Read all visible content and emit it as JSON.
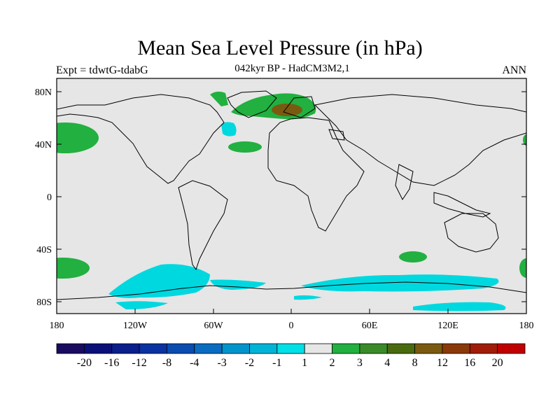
{
  "header": {
    "title": "Mean Sea Level Pressure (in hPa)",
    "experiment": "Expt = tdwtG-tdabG",
    "subtitle": "042kyr BP - HadCM3M2,1",
    "season": "ANN"
  },
  "map": {
    "lat_ticks": [
      "80N",
      "40N",
      "0",
      "40S",
      "80S"
    ],
    "lon_ticks": [
      "180",
      "120W",
      "60W",
      "0",
      "60E",
      "120E",
      "180"
    ],
    "background_color": "#e6e6e6",
    "colors": {
      "cyan_neg1": "#00d8e0",
      "green_pos1": "#22b040",
      "olive_pos2": "#3a8a2a",
      "brown_pos4": "#7a5a10"
    }
  },
  "colorbar": {
    "labels": [
      "-20",
      "-16",
      "-12",
      "-8",
      "-4",
      "-3",
      "-2",
      "-1",
      "1",
      "2",
      "3",
      "4",
      "8",
      "12",
      "16",
      "20"
    ],
    "colors": [
      "#1a0a60",
      "#0a1078",
      "#0a1e8c",
      "#0a32a0",
      "#0a4cb0",
      "#0a6cc0",
      "#0094cc",
      "#00b4d8",
      "#00e0e6",
      "#e6e6e6",
      "#22b040",
      "#3a8a2a",
      "#4a6a10",
      "#7a5a10",
      "#8a3a08",
      "#a01c08",
      "#c00000"
    ]
  }
}
